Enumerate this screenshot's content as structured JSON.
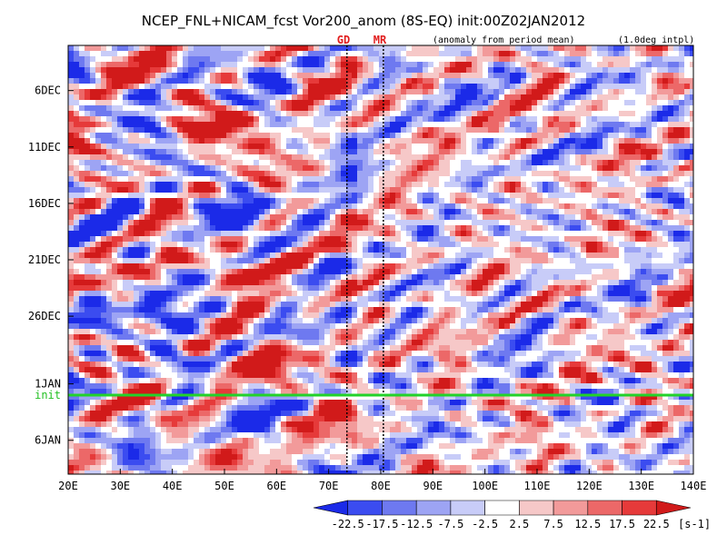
{
  "chart_data": {
    "type": "heatmap",
    "title": "NCEP_FNL+NICAM_fcst Vor200_anom (8S-EQ) init:00Z02JAN2012",
    "subtitle": "(anomaly from period mean)",
    "resolution_note": "(1.0deg intpl)",
    "region_markers": [
      {
        "label": "GD",
        "lon": 73.5
      },
      {
        "label": "MR",
        "lon": 80.5
      }
    ],
    "init_label": "init",
    "x_ticks": [
      {
        "lon": 20,
        "label": "20E"
      },
      {
        "lon": 30,
        "label": "30E"
      },
      {
        "lon": 40,
        "label": "40E"
      },
      {
        "lon": 50,
        "label": "50E"
      },
      {
        "lon": 60,
        "label": "60E"
      },
      {
        "lon": 70,
        "label": "70E"
      },
      {
        "lon": 80,
        "label": "80E"
      },
      {
        "lon": 90,
        "label": "90E"
      },
      {
        "lon": 100,
        "label": "100E"
      },
      {
        "lon": 110,
        "label": "110E"
      },
      {
        "lon": 120,
        "label": "120E"
      },
      {
        "lon": 130,
        "label": "130E"
      },
      {
        "lon": 140,
        "label": "140E"
      }
    ],
    "xlim": [
      20,
      140
    ],
    "y_ticks": [
      {
        "day": 4,
        "label": "6DEC"
      },
      {
        "day": 9,
        "label": "11DEC"
      },
      {
        "day": 14,
        "label": "16DEC"
      },
      {
        "day": 19,
        "label": "21DEC"
      },
      {
        "day": 24,
        "label": "26DEC"
      },
      {
        "day": 30,
        "label": "1JAN"
      },
      {
        "day": 35,
        "label": "6JAN"
      }
    ],
    "y_range_days": [
      0,
      38
    ],
    "init_day": 31,
    "colorbar": {
      "levels": [
        "-22.5",
        "-17.5",
        "-12.5",
        "-7.5",
        "-2.5",
        "2.5",
        "7.5",
        "12.5",
        "17.5",
        "22.5"
      ],
      "colors": [
        "#1b2ae8",
        "#3b4cf0",
        "#6e79f0",
        "#9da4f4",
        "#c8ccf8",
        "#ffffff",
        "#f6c8c8",
        "#f29a9a",
        "#ec6868",
        "#e63a3a",
        "#d11a1a"
      ],
      "units": "[s-1]"
    },
    "features": [
      {
        "kind": "positive",
        "lon": 49,
        "day": 7.5,
        "note": "red blob near 50E early Dec"
      },
      {
        "kind": "negative",
        "lon": 49,
        "day": 15,
        "note": "blue blob near 50E mid Dec"
      },
      {
        "kind": "positive",
        "lon": 50,
        "day": 20,
        "note": "red streak near 45-55E 21DEC"
      },
      {
        "kind": "negative",
        "lon": 40,
        "day": 24,
        "note": "blue patch 26DEC"
      },
      {
        "kind": "positive",
        "lon": 60,
        "day": 28,
        "note": "red band late Dec"
      }
    ]
  }
}
